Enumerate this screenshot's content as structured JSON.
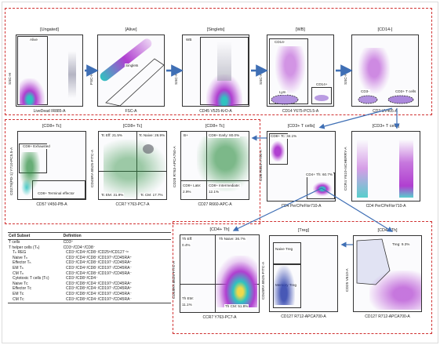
{
  "panels": {
    "ungated": {
      "title": "[Ungated]",
      "ylabel": "SSC-H",
      "xlabel": "LiveDead IR885-A",
      "gate": "Alive"
    },
    "alive": {
      "title": "[Alive]",
      "ylabel": "FSC-H",
      "xlabel": "FSC-A",
      "gate": "Singlets"
    },
    "singlets": {
      "title": "[Singlets]",
      "ylabel": "SSC-H",
      "xlabel": "CD45 V525-KrO-A",
      "gate": "WB"
    },
    "wb": {
      "title": "[WB]",
      "ylabel": "SSC-H",
      "xlabel": "CD14 Y675-PC5.5-A",
      "gate_cd14neg": "CD14-",
      "gate_lym": "Lym",
      "gate_cd14pos": "CD14+"
    },
    "cd14neg": {
      "title": "[CD14-]",
      "ylabel": "SSC-H",
      "xlabel": "CD3 UV405-A",
      "gate_cd3neg": "CD3-",
      "gate_cd3pos": "CD3+ T cells"
    },
    "cd8tc_a": {
      "title": "[CD8+ Tc]",
      "ylabel": "CD279(PD-1) Y710-PC5.5-A",
      "xlabel": "CD57 V450-PB-A",
      "gate_exh": "CD8+ Exhausted",
      "gate_te": "CD8+ Terminal effector"
    },
    "cd8tc_b": {
      "title": "[CD8+ Tc]",
      "ylabel": "CD45RA B525-FITC-A",
      "xlabel": "CCR7 Y763-PC7-A",
      "q_eff": "Tc Eff: 21.5%",
      "q_naive": "Tc Naive: 26.9%",
      "q_em": "Tc EM: 31.9%",
      "q_cm": "Tc CM: 17.7%"
    },
    "cd8tc_c": {
      "title": "[CD8+ Tc]",
      "ylabel": "CD28 R763-APCA750-A",
      "xlabel": "CD27 R660-APC-A",
      "q_bplus": "B+",
      "q_early": "CD8+ Early: 80.0%",
      "q_late": "CD8+ Late:",
      "q_late_v": "2.9%",
      "q_inter": "CD8+ Intermediate:",
      "q_inter_v": "12.1%"
    },
    "cd3t_a": {
      "title": "[CD3+ T cells]",
      "ylabel": "CD8 R840-A700-A",
      "xlabel": "CD4 PerCPeFlor710-A",
      "gate_cd8": "CD8+ Tc: 34.1%",
      "gate_cd4": "CD4+ Th: 60.7%"
    },
    "cd3t_b": {
      "title": "[CD3+ T cells]",
      "ylabel": "CCR4 Y610-mCHERRY-A",
      "xlabel": "CD4 PerCPeFlor710-A"
    },
    "cd4th_a": {
      "title": "[CD4+ Th]",
      "ylabel": "CD45RA B525-FITC-A",
      "xlabel": "CCR7 Y763-PC7-A",
      "q_eff": "Th Eff:",
      "q_eff_v": "0.4%",
      "q_naive": "Th Naive: 36.7%",
      "q_em": "Th EM:",
      "q_em_v": "11.1%",
      "q_cm": "Th CM: 51.8%"
    },
    "treg": {
      "title": "[Treg]",
      "ylabel": "CD45RA B525-FITC-A",
      "xlabel": "CD127 R712-APCA700-A",
      "gate_naive": "Naive Treg",
      "gate_mem": "Memory Treg"
    },
    "cd4th_b": {
      "title": "[CD4+ Th]",
      "ylabel": "CD25 V610-A",
      "xlabel": "CD127 R712-APCA700-A",
      "gate_treg": "Treg: 9.3%"
    }
  },
  "table": {
    "headers": [
      "Cell Subset",
      "Definition"
    ],
    "rows": [
      [
        "T cells",
        "CD3⁺"
      ],
      [
        "T helper cells (Tₕ)",
        "CD3⁺/CD4⁺/CD8⁻"
      ],
      [
        "Tₕ REG",
        "CD3⁺/CD4⁺/CD8⁻/CD25ʰⁱ/CD127⁻ˡᵒ"
      ],
      [
        "Naive Tₕ",
        "CD3⁺/CD4⁺/CD8⁻/CD197⁺/CD45RA⁺"
      ],
      [
        "Effector Tₕ",
        "CD3⁺/CD4⁺/CD8⁻/CD197⁻/CD45RA⁺"
      ],
      [
        "EM Tₕ",
        "CD3⁺/CD4⁺/CD8⁻/CD197⁻/CD45RA⁻"
      ],
      [
        "CM Tₕ",
        "CD3⁺/CD4⁺/CD8⁻/CD197⁺/CD45RA⁻"
      ],
      [
        "Cytotoxic T cells (Tᴄ)",
        "CD3⁺/CD8⁺/CD4⁻"
      ],
      [
        "Naive Tᴄ",
        "CD3⁺/CD8⁺/CD4⁻/CD197⁺/CD45RA⁺"
      ],
      [
        "Effector Tᴄ",
        "CD3⁺/CD8⁺/CD4⁻/CD197⁻/CD45RA⁺"
      ],
      [
        "EM Tᴄ",
        "CD3⁺/CD8⁺/CD4⁻/CD197⁻/CD45RA⁻"
      ],
      [
        "CM Tᴄ",
        "CD3⁺/CD8⁺/CD4⁻/CD197⁺/CD45RA⁻"
      ]
    ]
  },
  "colors": {
    "section_border": "#d03030",
    "arrow": "#3f6fb5",
    "dots": "#9a9aa8",
    "dense_core": "#b03fd0",
    "dense_hot": "#2fc3c0"
  }
}
